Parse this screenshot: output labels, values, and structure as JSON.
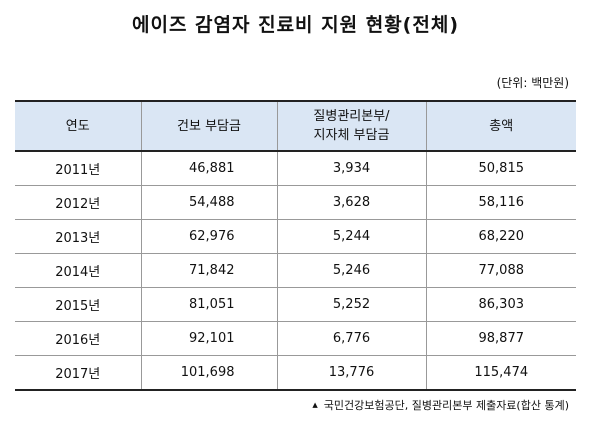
{
  "title": "에이즈 감염자 진료비 지원 현황(전체)",
  "unit_note": "(단위: 백만원)",
  "table": {
    "headers": [
      "연도",
      "건보 부담금",
      "질병관리본부/",
      "지자체 부담금",
      "총액"
    ],
    "rows": [
      {
        "year": "2011년",
        "insurance": "46,881",
        "kcdc": "3,934",
        "total": "50,815"
      },
      {
        "year": "2012년",
        "insurance": "54,488",
        "kcdc": "3,628",
        "total": "58,116"
      },
      {
        "year": "2013년",
        "insurance": "62,976",
        "kcdc": "5,244",
        "total": "68,220"
      },
      {
        "year": "2014년",
        "insurance": "71,842",
        "kcdc": "5,246",
        "total": "77,088"
      },
      {
        "year": "2015년",
        "insurance": "81,051",
        "kcdc": "5,252",
        "total": "86,303"
      },
      {
        "year": "2016년",
        "insurance": "92,101",
        "kcdc": "6,776",
        "total": "98,877"
      },
      {
        "year": "2017년",
        "insurance": "101,698",
        "kcdc": "13,776",
        "total": "115,474"
      }
    ]
  },
  "footnote": {
    "bullet": "▲",
    "text": "국민건강보험공단, 질병관리본부 제출자료(합산 통계)"
  }
}
